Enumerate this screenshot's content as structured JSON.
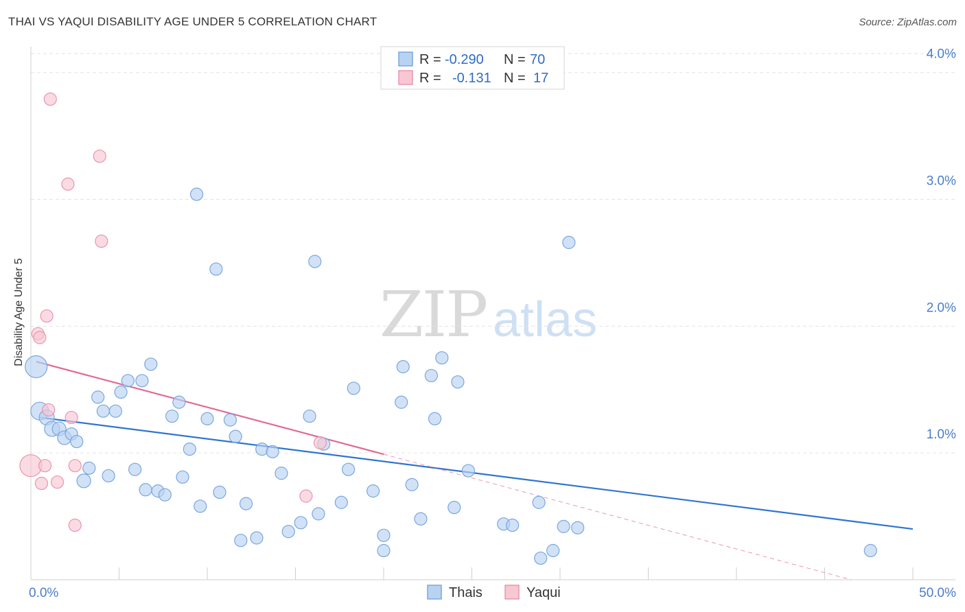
{
  "title": "THAI VS YAQUI DISABILITY AGE UNDER 5 CORRELATION CHART",
  "source": "Source: ZipAtlas.com",
  "watermark": {
    "zip": "ZIP",
    "atlas": "atlas"
  },
  "colors": {
    "thai_fill": "#b8d3f2",
    "thai_stroke": "#7aa6dc",
    "thai_line": "#2f74d0",
    "yaqui_fill": "#f8c7d4",
    "yaqui_stroke": "#e995ad",
    "yaqui_line": "#e06a93",
    "tick_text": "#4a7cc9",
    "grid": "#e3e3e3"
  },
  "stats": {
    "thai": {
      "r_label": "R =",
      "r_value": "-0.290",
      "n_label": "N =",
      "n_value": "70"
    },
    "yaqui": {
      "r_label": "R =",
      "r_value": "-0.131",
      "n_label": "N =",
      "n_value": "17"
    }
  },
  "chart_data": {
    "type": "scatter",
    "title": "THAI VS YAQUI DISABILITY AGE UNDER 5 CORRELATION CHART",
    "xlabel": "",
    "ylabel": "Disability Age Under 5",
    "xlim": [
      0,
      50
    ],
    "ylim": [
      0,
      4.15
    ],
    "x_tick_labels": [
      {
        "x": 0,
        "label": "0.0%"
      },
      {
        "x": 50,
        "label": "50.0%"
      }
    ],
    "y_tick_labels": [
      {
        "y": 1,
        "label": "1.0%"
      },
      {
        "y": 2,
        "label": "2.0%"
      },
      {
        "y": 3,
        "label": "3.0%"
      },
      {
        "y": 4,
        "label": "4.0%"
      }
    ],
    "grid": true,
    "legend_position": "bottom-center",
    "series": [
      {
        "name": "Thais",
        "points": [
          [
            0.3,
            1.68,
            16
          ],
          [
            0.5,
            1.33,
            13
          ],
          [
            0.9,
            1.28,
            11
          ],
          [
            1.2,
            1.19,
            11
          ],
          [
            1.6,
            1.19,
            10
          ],
          [
            1.9,
            1.12,
            10
          ],
          [
            2.3,
            1.15,
            9
          ],
          [
            2.6,
            1.09,
            9
          ],
          [
            3.0,
            0.78,
            10
          ],
          [
            3.3,
            0.88,
            9
          ],
          [
            3.8,
            1.44,
            9
          ],
          [
            4.1,
            1.33,
            9
          ],
          [
            4.4,
            0.82,
            9
          ],
          [
            4.8,
            1.33,
            9
          ],
          [
            5.1,
            1.48,
            9
          ],
          [
            5.5,
            1.57,
            9
          ],
          [
            5.9,
            0.87,
            9
          ],
          [
            6.3,
            1.57,
            9
          ],
          [
            6.5,
            0.71,
            9
          ],
          [
            6.8,
            1.7,
            9
          ],
          [
            7.2,
            0.7,
            9
          ],
          [
            7.6,
            0.67,
            9
          ],
          [
            8.0,
            1.29,
            9
          ],
          [
            8.4,
            1.4,
            9
          ],
          [
            8.6,
            0.81,
            9
          ],
          [
            9.0,
            1.03,
            9
          ],
          [
            9.4,
            3.04,
            9
          ],
          [
            9.6,
            0.58,
            9
          ],
          [
            10.0,
            1.27,
            9
          ],
          [
            10.5,
            2.45,
            9
          ],
          [
            10.7,
            0.69,
            9
          ],
          [
            11.3,
            1.26,
            9
          ],
          [
            11.6,
            1.13,
            9
          ],
          [
            11.9,
            0.31,
            9
          ],
          [
            12.2,
            0.6,
            9
          ],
          [
            12.8,
            0.33,
            9
          ],
          [
            13.1,
            1.03,
            9
          ],
          [
            13.7,
            1.01,
            9
          ],
          [
            14.2,
            0.84,
            9
          ],
          [
            14.6,
            0.38,
            9
          ],
          [
            15.3,
            0.45,
            9
          ],
          [
            15.8,
            1.29,
            9
          ],
          [
            16.1,
            2.51,
            9
          ],
          [
            16.3,
            0.52,
            9
          ],
          [
            16.6,
            1.07,
            9
          ],
          [
            17.6,
            0.61,
            9
          ],
          [
            18.0,
            0.87,
            9
          ],
          [
            18.3,
            1.51,
            9
          ],
          [
            19.4,
            0.7,
            9
          ],
          [
            20.0,
            0.35,
            9
          ],
          [
            20.0,
            0.23,
            9
          ],
          [
            21.0,
            1.4,
            9
          ],
          [
            21.1,
            1.68,
            9
          ],
          [
            21.6,
            0.75,
            9
          ],
          [
            22.1,
            0.48,
            9
          ],
          [
            22.7,
            1.61,
            9
          ],
          [
            22.9,
            1.27,
            9
          ],
          [
            23.3,
            1.75,
            9
          ],
          [
            24.0,
            0.57,
            9
          ],
          [
            24.2,
            1.56,
            9
          ],
          [
            24.8,
            0.86,
            9
          ],
          [
            26.8,
            0.44,
            9
          ],
          [
            27.3,
            0.43,
            9
          ],
          [
            28.8,
            0.61,
            9
          ],
          [
            28.9,
            0.17,
            9
          ],
          [
            29.6,
            0.23,
            9
          ],
          [
            30.2,
            0.42,
            9
          ],
          [
            30.5,
            2.66,
            9
          ],
          [
            31.0,
            0.41,
            9
          ],
          [
            47.6,
            0.23,
            9
          ]
        ],
        "trend": {
          "x1": 0.5,
          "y1": 1.28,
          "x2": 50,
          "y2": 0.4
        }
      },
      {
        "name": "Yaqui",
        "points": [
          [
            0.0,
            0.9,
            16
          ],
          [
            0.4,
            1.94,
            9
          ],
          [
            0.5,
            1.91,
            9
          ],
          [
            0.6,
            0.76,
            9
          ],
          [
            0.8,
            0.9,
            9
          ],
          [
            0.9,
            2.08,
            9
          ],
          [
            1.0,
            1.34,
            9
          ],
          [
            1.1,
            3.79,
            9
          ],
          [
            1.5,
            0.77,
            9
          ],
          [
            2.1,
            3.12,
            9
          ],
          [
            2.3,
            1.28,
            9
          ],
          [
            2.5,
            0.9,
            9
          ],
          [
            2.5,
            0.43,
            9
          ],
          [
            3.9,
            3.34,
            9
          ],
          [
            4.0,
            2.67,
            9
          ],
          [
            15.6,
            0.66,
            9
          ],
          [
            16.4,
            1.08,
            9
          ]
        ],
        "trend": {
          "x1": 0.3,
          "y1": 1.72,
          "x2": 20,
          "y2": 0.99
        },
        "trend_extension": {
          "x1": 20,
          "y1": 0.99,
          "x2": 46.5,
          "y2": 0.0
        }
      }
    ]
  }
}
